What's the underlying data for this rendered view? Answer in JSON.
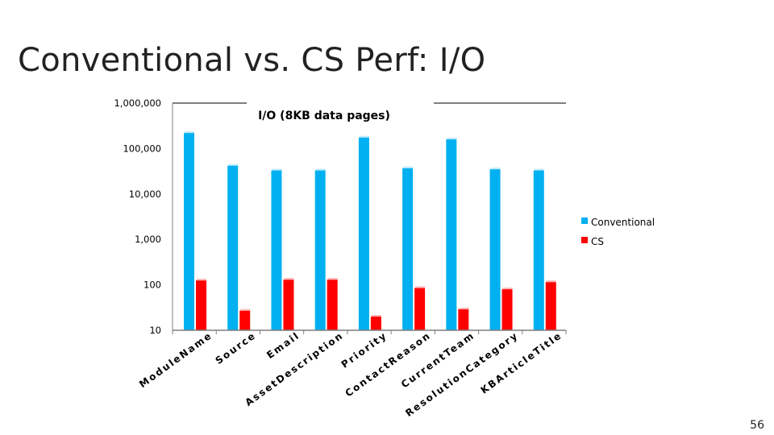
{
  "slide": {
    "title": "Conventional vs. CS Perf: I/O",
    "page_number": "56"
  },
  "colors": {
    "conventional": "#00b0f0",
    "cs": "#ff0000",
    "axis": "#7f7f7f"
  },
  "chart_data": {
    "type": "bar",
    "title": "I/O (8KB data pages)",
    "y_scale": "log",
    "ylim": [
      10,
      1000000
    ],
    "y_ticks": [
      10,
      100,
      1000,
      10000,
      100000,
      1000000
    ],
    "y_tick_labels": [
      "10",
      "100",
      "1,000",
      "10,000",
      "100,000",
      "1,000,000"
    ],
    "legend_position": "right",
    "categories": [
      "ModuleName",
      "Source",
      "Email",
      "AssetDescription",
      "Priority",
      "ContactReason",
      "CurrentTeam",
      "ResolutionCategory",
      "KBArticleTitle"
    ],
    "series": [
      {
        "name": "Conventional",
        "values": [
          220000,
          42000,
          33000,
          33000,
          175000,
          37000,
          160000,
          35000,
          33000
        ]
      },
      {
        "name": "CS",
        "values": [
          125,
          27,
          130,
          130,
          20,
          85,
          29,
          80,
          115
        ]
      }
    ]
  }
}
